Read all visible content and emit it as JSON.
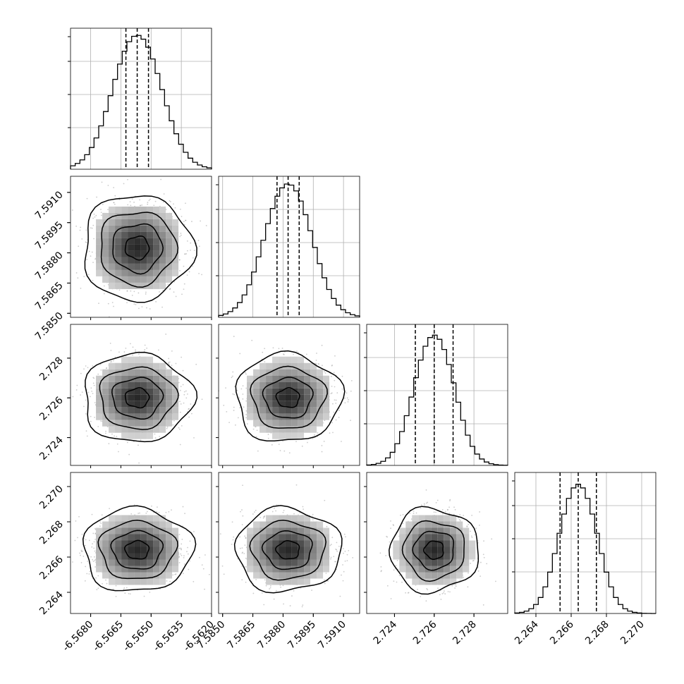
{
  "chart_data": {
    "type": "corner",
    "grid": true,
    "quantile_lines": "dashed",
    "parameters": [
      {
        "range": [
          -6.569,
          -6.562
        ],
        "ticks": [
          "-6.5680",
          "-6.5665",
          "-6.5650",
          "-6.5635",
          "-6.5620"
        ],
        "tick_values": [
          -6.568,
          -6.5665,
          -6.565,
          -6.5635,
          -6.562
        ],
        "mean": -6.56569,
        "sd": 0.00118,
        "quantiles": [
          -6.56625,
          -6.56569,
          -6.56513
        ]
      },
      {
        "range": [
          7.5848,
          7.5918
        ],
        "ticks": [
          "7.5850",
          "7.5865",
          "7.5880",
          "7.5895",
          "7.5910"
        ],
        "tick_values": [
          7.585,
          7.5865,
          7.588,
          7.5895,
          7.591
        ],
        "mean": 7.58825,
        "sd": 0.00114,
        "quantiles": [
          7.5877,
          7.58825,
          7.5888
        ]
      },
      {
        "range": [
          2.7226,
          2.7297
        ],
        "ticks": [
          "2.724",
          "2.726",
          "2.728"
        ],
        "tick_values": [
          2.724,
          2.726,
          2.728
        ],
        "mean": 2.726,
        "sd": 0.00097,
        "quantiles": [
          2.72505,
          2.726,
          2.72695
        ]
      },
      {
        "range": [
          2.2628,
          2.2708
        ],
        "ticks": [
          "2.264",
          "2.266",
          "2.268",
          "2.270"
        ],
        "tick_values": [
          2.264,
          2.266,
          2.268,
          2.27
        ],
        "mean": 2.2664,
        "sd": 0.00103,
        "quantiles": [
          2.26537,
          2.2664,
          2.26743
        ]
      }
    ]
  }
}
